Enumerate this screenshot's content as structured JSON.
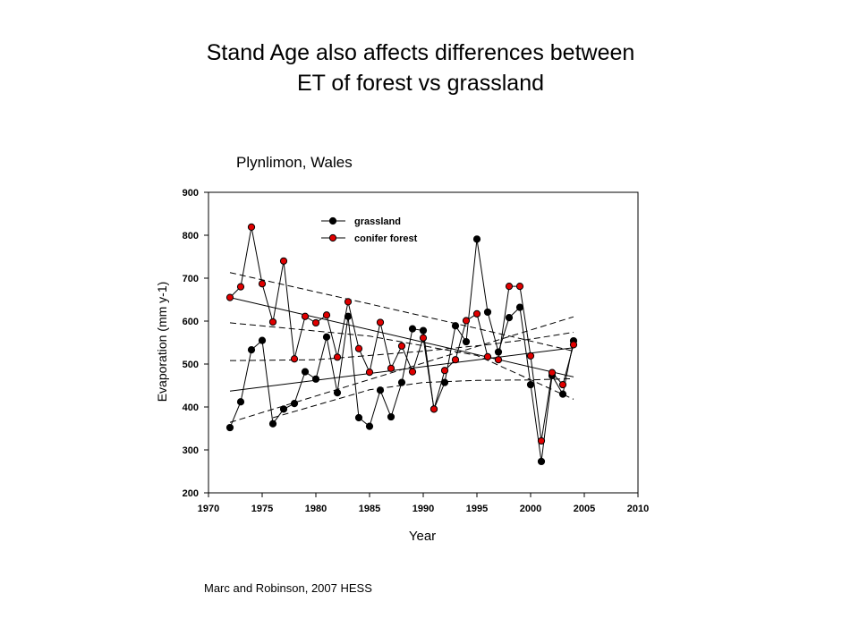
{
  "slide": {
    "title_line1": "Stand Age also affects differences between",
    "title_line2": "ET of forest vs grassland",
    "citation": "Marc and Robinson, 2007 HESS"
  },
  "chart_data": {
    "type": "scatter",
    "title": "Plynlimon, Wales",
    "xlabel": "Year",
    "ylabel": "Evaporation (mm y-1)",
    "xlim": [
      1970,
      2010
    ],
    "ylim": [
      200,
      900
    ],
    "xticks": [
      1970,
      1975,
      1980,
      1985,
      1990,
      1995,
      2000,
      2005,
      2010
    ],
    "yticks": [
      200,
      300,
      400,
      500,
      600,
      700,
      800,
      900
    ],
    "grid": false,
    "legend_position": "top-left",
    "series": [
      {
        "name": "grassland",
        "color": "#000000",
        "marker_fill": "#000000",
        "x": [
          1972,
          1973,
          1974,
          1975,
          1976,
          1977,
          1978,
          1979,
          1980,
          1981,
          1982,
          1983,
          1984,
          1985,
          1986,
          1987,
          1988,
          1989,
          1990,
          1991,
          1992,
          1993,
          1994,
          1995,
          1996,
          1997,
          1998,
          1999,
          2000,
          2001,
          2002,
          2003,
          2004
        ],
        "y": [
          352,
          412,
          533,
          555,
          361,
          395,
          408,
          482,
          465,
          563,
          433,
          611,
          375,
          355,
          439,
          377,
          457,
          582,
          578,
          395,
          457,
          589,
          552,
          791,
          621,
          528,
          608,
          632,
          452,
          273,
          473,
          430,
          554
        ]
      },
      {
        "name": "conifer forest",
        "color": "#000000",
        "marker_fill": "#e00000",
        "x": [
          1972,
          1973,
          1974,
          1975,
          1976,
          1977,
          1978,
          1979,
          1980,
          1981,
          1982,
          1983,
          1984,
          1985,
          1986,
          1987,
          1988,
          1989,
          1990,
          1991,
          1992,
          1993,
          1994,
          1995,
          1996,
          1997,
          1998,
          1999,
          2000,
          2001,
          2002,
          2003,
          2004
        ],
        "y": [
          655,
          680,
          819,
          687,
          598,
          740,
          512,
          611,
          596,
          614,
          516,
          645,
          536,
          481,
          597,
          490,
          542,
          482,
          561,
          395,
          485,
          510,
          601,
          617,
          517,
          510,
          681,
          681,
          519,
          321,
          480,
          452,
          545
        ]
      }
    ],
    "trend_lines": [
      {
        "style": "solid",
        "x": [
          1972,
          2004
        ],
        "y": [
          437,
          538
        ]
      },
      {
        "style": "dashed",
        "x": [
          1972,
          2004
        ],
        "y": [
          364,
          610
        ]
      },
      {
        "style": "dashed",
        "x": [
          1972,
          1980,
          1990,
          1996,
          2000,
          2004
        ],
        "y": [
          508,
          510,
          530,
          545,
          558,
          574
        ]
      },
      {
        "style": "solid",
        "x": [
          1972,
          2004
        ],
        "y": [
          655,
          470
        ]
      },
      {
        "style": "dashed",
        "x": [
          1972,
          1985,
          1995,
          2004
        ],
        "y": [
          713,
          640,
          583,
          530
        ]
      },
      {
        "style": "dashed",
        "x": [
          1972,
          1985,
          1995,
          2004
        ],
        "y": [
          596,
          565,
          520,
          418
        ]
      },
      {
        "style": "dashed",
        "x": [
          1976,
          1985,
          1990,
          1995,
          2000,
          2004
        ],
        "y": [
          375,
          440,
          457,
          462,
          463,
          466
        ]
      }
    ]
  }
}
